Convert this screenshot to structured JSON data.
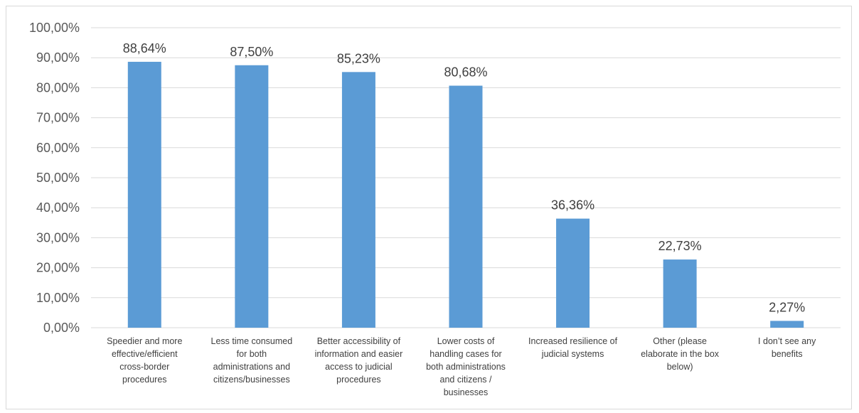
{
  "chart_data": {
    "type": "bar",
    "title": "",
    "xlabel": "",
    "ylabel": "",
    "ylim": [
      0,
      100
    ],
    "ytick_step": 10,
    "grid": true,
    "bar_color": "#5b9bd5",
    "grid_color": "#d9d9d9",
    "categories": [
      "Speedier and more effective/efficient cross-border procedures",
      "Less time consumed for both administrations and citizens/businesses",
      "Better accessibility of information and easier access to judicial procedures",
      "Lower costs of handling cases for both administrations and citizens / businesses",
      "Increased resilience of judicial systems",
      "Other (please elaborate in the box below)",
      "I don’t see any benefits"
    ],
    "category_lines": [
      [
        "Speedier and more",
        "effective/efficient",
        "cross-border",
        "procedures"
      ],
      [
        "Less time consumed",
        "for both",
        "administrations and",
        "citizens/businesses"
      ],
      [
        "Better accessibility of",
        "information and easier",
        "access to judicial",
        "procedures"
      ],
      [
        "Lower costs of",
        "handling cases for",
        "both administrations",
        "and citizens /",
        "businesses"
      ],
      [
        "Increased resilience of",
        "judicial systems"
      ],
      [
        "Other (please",
        "elaborate in the box",
        "below)"
      ],
      [
        "I don’t see any",
        "benefits"
      ]
    ],
    "values": [
      88.64,
      87.5,
      85.23,
      80.68,
      36.36,
      22.73,
      2.27
    ],
    "data_labels": [
      "88,64%",
      "87,50%",
      "85,23%",
      "80,68%",
      "36,36%",
      "22,73%",
      "2,27%"
    ],
    "ytick_labels": [
      "0,00%",
      "10,00%",
      "20,00%",
      "30,00%",
      "40,00%",
      "50,00%",
      "60,00%",
      "70,00%",
      "80,00%",
      "90,00%",
      "100,00%"
    ]
  }
}
